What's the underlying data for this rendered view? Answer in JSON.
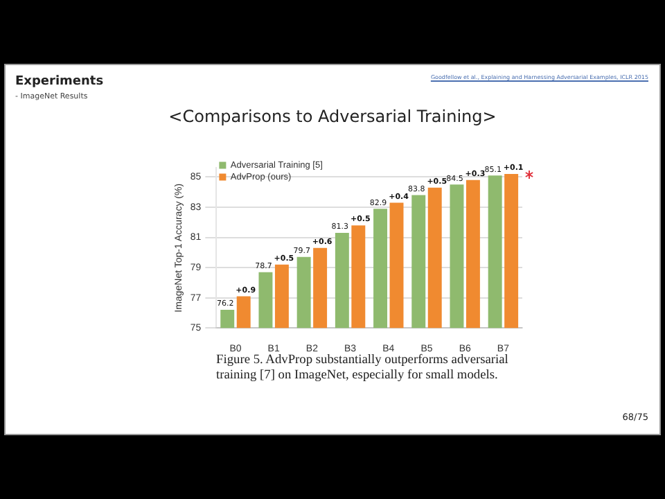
{
  "chart_data": {
    "type": "bar",
    "title": "<Comparisons to Adversarial Training>",
    "ylabel": "ImageNet Top-1 Accuracy (%)",
    "categories": [
      "B0",
      "B1",
      "B2",
      "B3",
      "B4",
      "B5",
      "B6",
      "B7"
    ],
    "series": [
      {
        "name": "Adversarial Training [5]",
        "color": "#8fba6e",
        "values": [
          76.2,
          78.7,
          79.7,
          81.3,
          82.9,
          83.8,
          84.5,
          85.1
        ],
        "value_labels": [
          "76.2",
          "78.7",
          "79.7",
          "81.3",
          "82.9",
          "83.8",
          "84.5",
          "85.1"
        ]
      },
      {
        "name": "AdvProp (ours)",
        "color": "#f08a30",
        "values": [
          77.1,
          79.2,
          80.3,
          81.8,
          83.3,
          84.3,
          84.8,
          85.2
        ]
      }
    ],
    "ylim": [
      75,
      85.6
    ],
    "yticks": [
      75,
      77,
      79,
      81,
      83,
      85
    ],
    "grid": "y",
    "legend": "top left",
    "annotations": [
      {
        "text": "+0.9",
        "x": "B0",
        "y": 77.1
      },
      {
        "text": "+0.5",
        "x": "B1",
        "y": 79.2
      },
      {
        "text": "+0.6",
        "x": "B2",
        "y": 80.3
      },
      {
        "text": "+0.5",
        "x": "B3",
        "y": 81.8
      },
      {
        "text": "+0.4",
        "x": "B4",
        "y": 83.3
      },
      {
        "text": "+0.5",
        "x": "B5",
        "y": 84.3
      },
      {
        "text": "+0.3",
        "x": "B6",
        "y": 84.8
      },
      {
        "text": "+0.1",
        "x": "B7",
        "y": 85.2
      },
      "Experiments",
      "- ImageNet Results",
      "Goodfellow et al., Explaining and Harnessing Adversarial Examples, ICLR 2015",
      "Figure 5. AdvProp substantially outperforms adversarial training [7] on ImageNet, especially for small models.",
      "68/75"
    ]
  }
}
